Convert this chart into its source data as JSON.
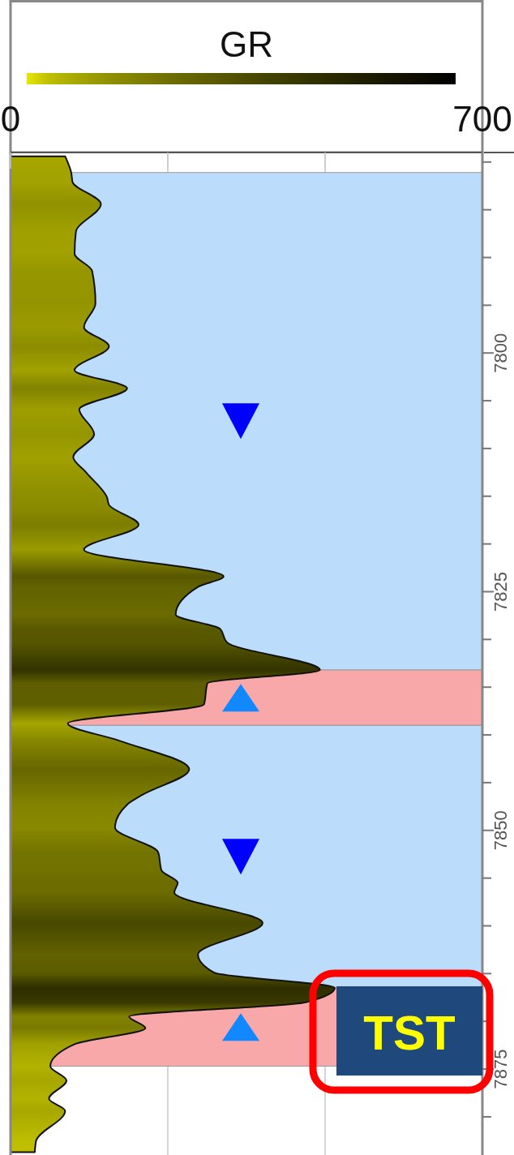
{
  "chart_data": {
    "type": "area",
    "orientation": "horizontal",
    "xlabel": "GR",
    "xlim": [
      0,
      700
    ],
    "xticks": [
      0,
      {
        "value": 233.3,
        "label": null
      },
      {
        "value": 466.7,
        "label": null
      },
      700
    ],
    "ylim": [
      7884,
      7779
    ],
    "yticks": [
      {
        "value": 7780,
        "label": null
      },
      {
        "value": 7785,
        "label": null
      },
      {
        "value": 7790,
        "label": null
      },
      {
        "value": 7795,
        "label": null
      },
      7800,
      {
        "value": 7805,
        "label": null
      },
      {
        "value": 7810,
        "label": null
      },
      {
        "value": 7815,
        "label": null
      },
      {
        "value": 7820,
        "label": null
      },
      7825,
      {
        "value": 7830,
        "label": null
      },
      {
        "value": 7835,
        "label": null
      },
      {
        "value": 7840,
        "label": null
      },
      {
        "value": 7845,
        "label": null
      },
      7850,
      {
        "value": 7855,
        "label": null
      },
      {
        "value": 7860,
        "label": null
      },
      {
        "value": 7865,
        "label": null
      },
      {
        "value": 7870,
        "label": null
      },
      7875,
      {
        "value": 7880,
        "label": null
      }
    ],
    "grid": "x",
    "bands": [
      {
        "axis": "y",
        "from": 7781.1,
        "to": 7833.2,
        "color": "#bbddfb"
      },
      {
        "axis": "y",
        "from": 7833.2,
        "to": 7839.0,
        "color": "#f8a8a8"
      },
      {
        "axis": "y",
        "from": 7839.0,
        "to": 7866.5,
        "color": "#bbddfb"
      },
      {
        "axis": "y",
        "from": 7866.5,
        "to": 7874.7,
        "color": "#f8a8a8"
      }
    ],
    "annotations": [
      "TST"
    ],
    "series": [
      {
        "color": "#111111",
        "x": [
          7779.4,
          7781.1,
          7782.1,
          7784.4,
          7787.3,
          7789.6,
          7791.4,
          7794.8,
          7797.3,
          7799.3,
          7801.8,
          7803.7,
          7805.9,
          7808.5,
          7810.9,
          7812.5,
          7815.1,
          7815.9,
          7818.0,
          7820.6,
          7823.4,
          7824.5,
          7827.4,
          7828.9,
          7830.3,
          7833.2,
          7834.6,
          7836.8,
          7838.8,
          7840.6,
          7843.6,
          7846.3,
          7847.3,
          7849.7,
          7852.3,
          7854.2,
          7855.5,
          7856.5,
          7859.7,
          7863.0,
          7864.9,
          7866.5,
          7868.0,
          7869.5,
          7870.7,
          7872.4,
          7874.7,
          7876.2,
          7878.1,
          7879.4,
          7882.5,
          7883.7
        ],
        "values": [
          81,
          90,
          92,
          134,
          97,
          95,
          121,
          126,
          109,
          146,
          95,
          173,
          102,
          124,
          93,
          112,
          143,
          146,
          190,
          109,
          316,
          278,
          245,
          311,
          321,
          459,
          292,
          287,
          85,
          161,
          265,
          195,
          173,
          155,
          219,
          224,
          248,
          243,
          374,
          278,
          302,
          481,
          438,
          176,
          200,
          95,
          59,
          83,
          57,
          81,
          38,
          36
        ]
      }
    ]
  }
}
